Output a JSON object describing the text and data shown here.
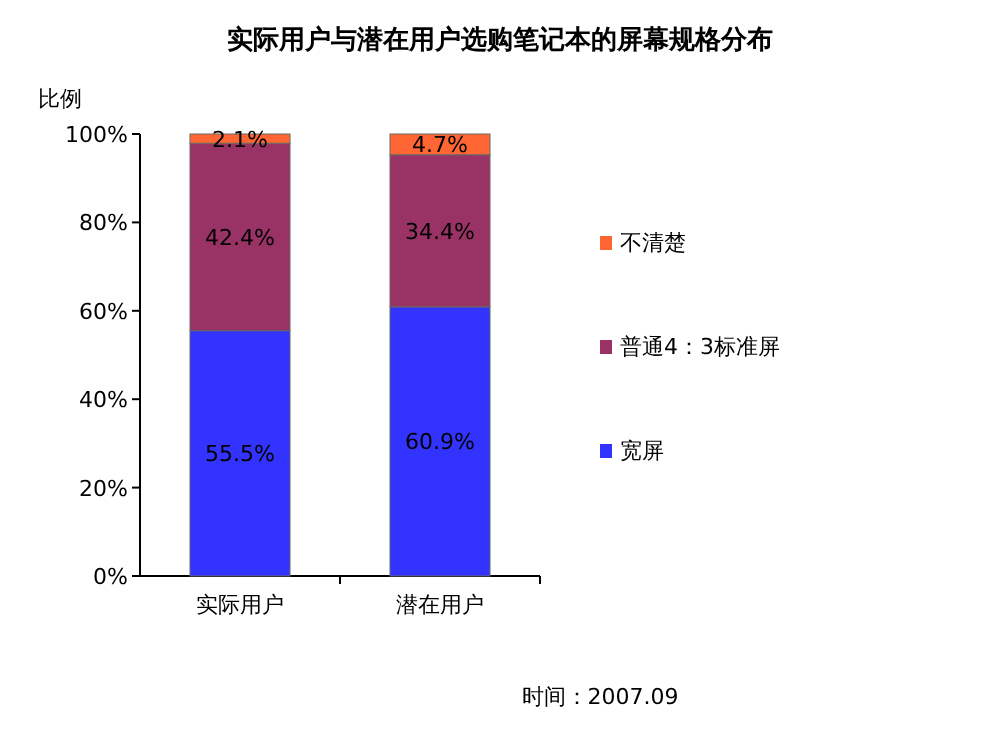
{
  "chart_data": {
    "type": "bar",
    "stacked": true,
    "title": "实际用户与潜在用户选购笔记本的屏幕规格分布",
    "ylabel": "比例",
    "categories": [
      "实际用户",
      "潜在用户"
    ],
    "series": [
      {
        "name": "宽屏",
        "color": "#3333ff",
        "values": [
          55.5,
          60.9
        ],
        "value_labels": [
          "55.5%",
          "60.9%"
        ]
      },
      {
        "name": "普通4：3标准屏",
        "color": "#993366",
        "values": [
          42.4,
          34.4
        ],
        "value_labels": [
          "42.4%",
          "34.4%"
        ]
      },
      {
        "name": "不清楚",
        "color": "#ff6633",
        "values": [
          2.1,
          4.7
        ],
        "value_labels": [
          "2.1%",
          "4.7%"
        ]
      }
    ],
    "ylim": [
      0,
      100
    ],
    "yticks": [
      {
        "value": 0,
        "label": "0%"
      },
      {
        "value": 20,
        "label": "20%"
      },
      {
        "value": 40,
        "label": "40%"
      },
      {
        "value": 60,
        "label": "60%"
      },
      {
        "value": 80,
        "label": "80%"
      },
      {
        "value": 100,
        "label": "100%"
      }
    ],
    "legend": "right",
    "annotations": [
      "时间：2007.09"
    ]
  }
}
